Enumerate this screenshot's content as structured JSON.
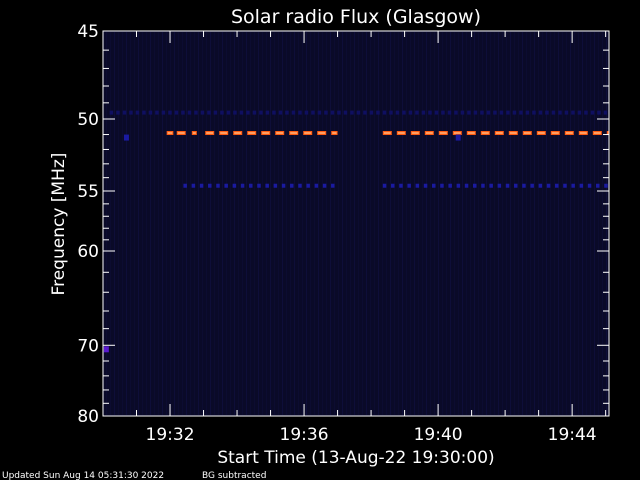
{
  "chart_data": {
    "type": "heatmap",
    "title": "Solar radio Flux (Glasgow)",
    "xlabel": "Start Time (13-Aug-22 19:30:00)",
    "ylabel": "Frequency [MHz]",
    "x_unit": "minutes after 19:30",
    "xlim": [
      0,
      15.1
    ],
    "ylim": [
      80,
      45
    ],
    "y_scale": "reciprocal",
    "x_ticks": [
      {
        "value": 2,
        "label": "19:32"
      },
      {
        "value": 6,
        "label": "19:36"
      },
      {
        "value": 10,
        "label": "19:40"
      },
      {
        "value": 14,
        "label": "19:44"
      }
    ],
    "y_ticks": [
      {
        "value": 45,
        "label": "45"
      },
      {
        "value": 50,
        "label": "50"
      },
      {
        "value": 55,
        "label": "55"
      },
      {
        "value": 60,
        "label": "60"
      },
      {
        "value": 70,
        "label": "70"
      },
      {
        "value": 80,
        "label": "80"
      }
    ],
    "y_minor_ticks": [
      46,
      47,
      48,
      49,
      51,
      52,
      53,
      54,
      56,
      57,
      58,
      59,
      62,
      64,
      66,
      68,
      72,
      74,
      76,
      78
    ],
    "x_minor_ticks": [
      1,
      3,
      4,
      5,
      7,
      8,
      9,
      11,
      12,
      13,
      15
    ],
    "grid": false,
    "colors": {
      "background": "#0a0a28",
      "strong": "#ff5a10",
      "strong_core": "#ffe0b0",
      "medium": "#1a1aa0",
      "weak": "#0f0f60",
      "spot": "#5a1ad0"
    },
    "series": [
      {
        "freq_mhz": 49.6,
        "segments": [
          [
            0.2,
            15.0
          ]
        ],
        "level": "weak"
      },
      {
        "freq_mhz": 50.9,
        "segments": [
          [
            1.9,
            2.1
          ],
          [
            2.2,
            2.5
          ],
          [
            2.65,
            2.8
          ],
          [
            3.05,
            7.0
          ],
          [
            8.35,
            15.1
          ]
        ],
        "level": "strong"
      },
      {
        "freq_mhz": 54.6,
        "segments": [
          [
            2.4,
            7.0
          ],
          [
            8.35,
            15.1
          ]
        ],
        "level": "medium"
      }
    ],
    "spots": [
      {
        "time_min": 0.7,
        "freq_mhz": 51.2,
        "level": "medium"
      },
      {
        "time_min": 10.6,
        "freq_mhz": 51.2,
        "level": "medium"
      },
      {
        "time_min": 0.1,
        "freq_mhz": 70.5,
        "level": "spot"
      }
    ]
  },
  "footer": {
    "updated": "Updated Sun Aug 14 05:31:30 2022",
    "note": "BG subtracted"
  }
}
